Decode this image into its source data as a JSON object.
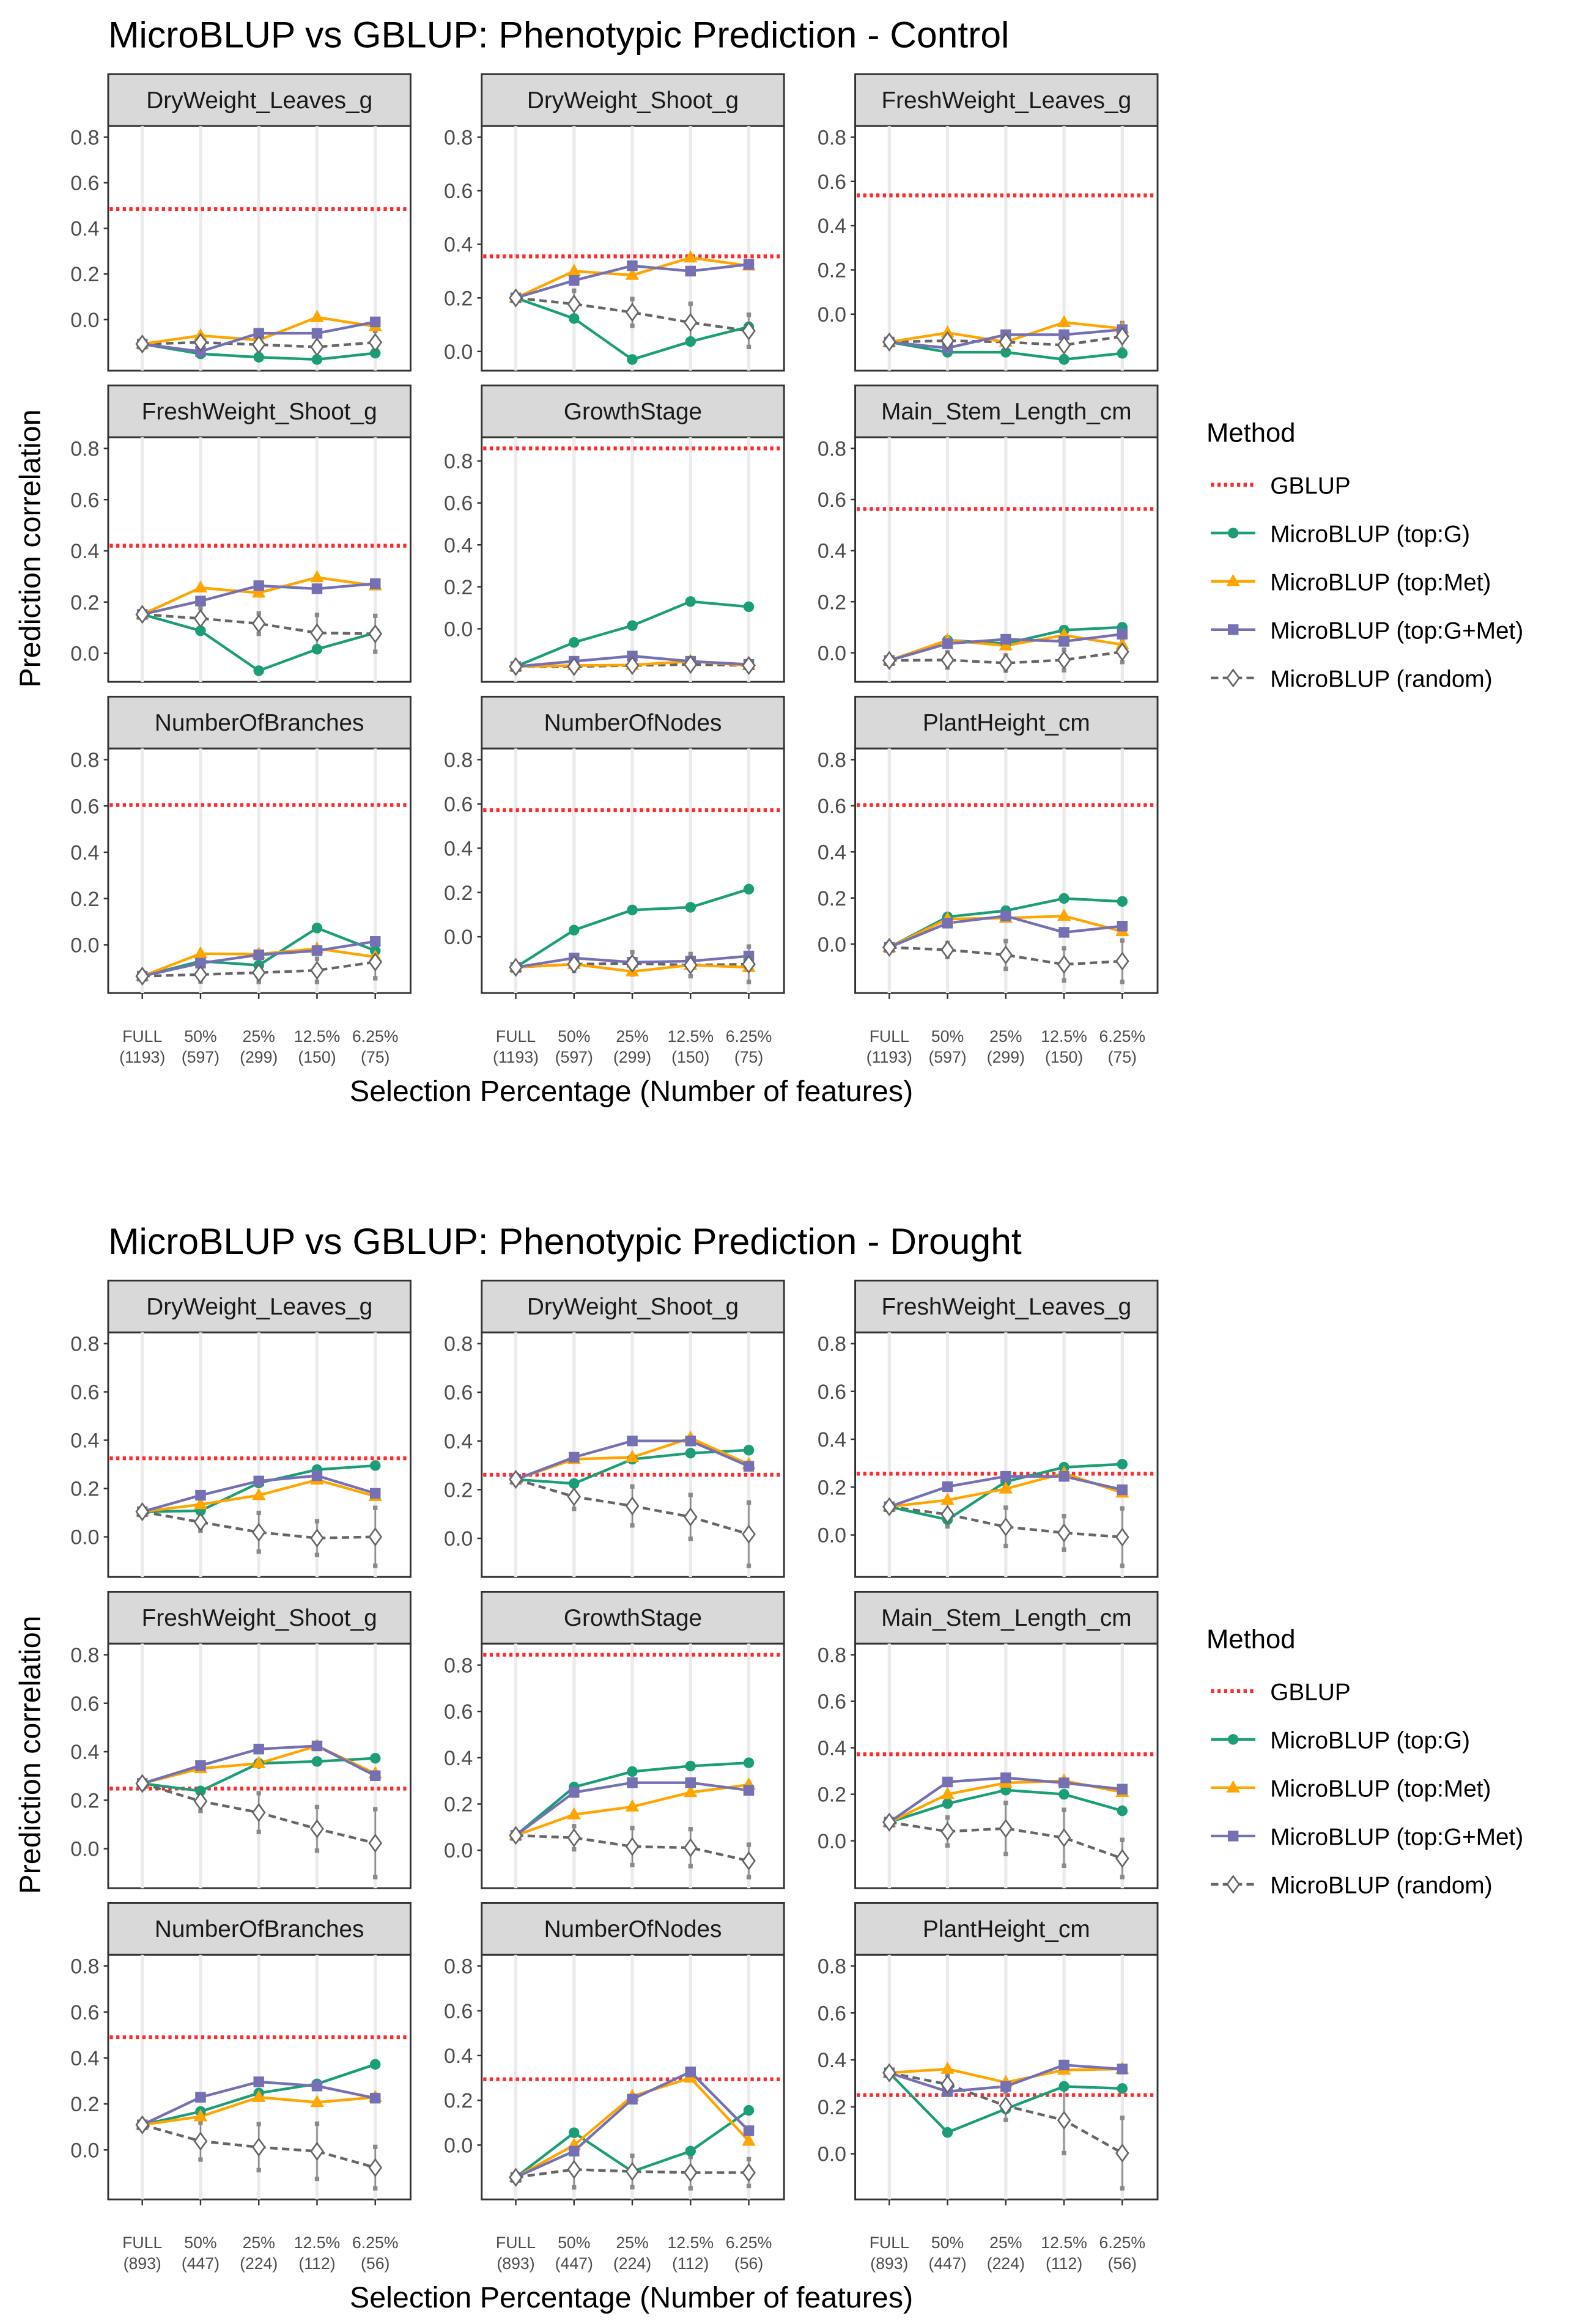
{
  "colors": {
    "GBLUP": "#FF2B2B",
    "MicroBLUP (top:G)": "#1B9E77",
    "MicroBLUP (top:Met)": "#FFA500",
    "MicroBLUP (top:G+Met)": "#7570B3",
    "MicroBLUP (random)": "#666666"
  },
  "legend": {
    "title": "Method",
    "items": [
      "GBLUP",
      "MicroBLUP (top:G)",
      "MicroBLUP (top:Met)",
      "MicroBLUP (top:G+Met)",
      "MicroBLUP (random)"
    ]
  },
  "chart_data": [
    {
      "type": "line",
      "title": "MicroBLUP vs GBLUP: Phenotypic Prediction - Control",
      "xlabel": "Selection Percentage (Number of features)",
      "ylabel": "Prediction correlation",
      "categories": [
        [
          "FULL",
          "(1193)"
        ],
        [
          "50%",
          "(597)"
        ],
        [
          "25%",
          "(299)"
        ],
        [
          "12.5%",
          "(150)"
        ],
        [
          "6.25%",
          "(75)"
        ]
      ],
      "yticks": [
        0.0,
        0.2,
        0.4,
        0.6,
        0.8
      ],
      "legend_position": "right",
      "facets": [
        {
          "name": "DryWeight_Leaves_g",
          "gblup": 0.485,
          "G": [
            -0.107,
            -0.15,
            -0.165,
            -0.175,
            -0.147
          ],
          "Met": [
            -0.107,
            -0.07,
            -0.09,
            0.01,
            -0.03
          ],
          "GMet": [
            -0.107,
            -0.14,
            -0.06,
            -0.06,
            -0.01
          ],
          "random": [
            -0.107,
            -0.1,
            -0.11,
            -0.12,
            -0.1
          ],
          "random_err": [
            0,
            0.03,
            0.04,
            0.05,
            0.05
          ]
        },
        {
          "name": "DryWeight_Shoot_g",
          "gblup": 0.355,
          "G": [
            0.2,
            0.123,
            -0.03,
            0.037,
            0.092
          ],
          "Met": [
            0.2,
            0.3,
            0.285,
            0.35,
            0.32
          ],
          "GMet": [
            0.2,
            0.265,
            0.32,
            0.3,
            0.325
          ],
          "random": [
            0.2,
            0.177,
            0.146,
            0.108,
            0.077
          ],
          "random_err": [
            0,
            0.05,
            0.05,
            0.07,
            0.06
          ]
        },
        {
          "name": "FreshWeight_Leaves_g",
          "gblup": 0.537,
          "G": [
            -0.126,
            -0.172,
            -0.172,
            -0.205,
            -0.177
          ],
          "Met": [
            -0.126,
            -0.084,
            -0.126,
            -0.037,
            -0.065
          ],
          "GMet": [
            -0.126,
            -0.153,
            -0.093,
            -0.093,
            -0.07
          ],
          "random": [
            -0.126,
            -0.12,
            -0.126,
            -0.14,
            -0.1
          ],
          "random_err": [
            0,
            0.04,
            0.04,
            0.05,
            0.06
          ]
        },
        {
          "name": "FreshWeight_Shoot_g",
          "gblup": 0.42,
          "G": [
            0.152,
            0.088,
            -0.068,
            0.016,
            0.08
          ],
          "Met": [
            0.152,
            0.256,
            0.236,
            0.296,
            0.264
          ],
          "GMet": [
            0.152,
            0.204,
            0.264,
            0.252,
            0.272
          ],
          "random": [
            0.152,
            0.136,
            0.116,
            0.08,
            0.076
          ],
          "random_err": [
            0,
            0.04,
            0.04,
            0.07,
            0.07
          ]
        },
        {
          "name": "GrowthStage",
          "gblup": 0.86,
          "G": [
            -0.18,
            -0.065,
            0.015,
            0.13,
            0.105
          ],
          "Met": [
            -0.18,
            -0.175,
            -0.173,
            -0.155,
            -0.175
          ],
          "GMet": [
            -0.18,
            -0.155,
            -0.13,
            -0.155,
            -0.17
          ],
          "random": [
            -0.18,
            -0.18,
            -0.175,
            -0.17,
            -0.175
          ],
          "random_err": [
            0,
            0.02,
            0.02,
            0.02,
            0.02
          ]
        },
        {
          "name": "Main_Stem_Length_cm",
          "gblup": 0.563,
          "G": [
            -0.03,
            0.049,
            0.036,
            0.089,
            0.1
          ],
          "Met": [
            -0.03,
            0.049,
            0.028,
            0.069,
            0.032
          ],
          "GMet": [
            -0.03,
            0.036,
            0.053,
            0.045,
            0.073
          ],
          "random": [
            -0.03,
            -0.028,
            -0.04,
            -0.028,
            0.004
          ],
          "random_err": [
            0,
            0.03,
            0.03,
            0.04,
            0.04
          ]
        },
        {
          "name": "NumberOfBranches",
          "gblup": 0.604,
          "G": [
            -0.135,
            -0.07,
            -0.088,
            0.073,
            -0.025
          ],
          "Met": [
            -0.135,
            -0.038,
            -0.04,
            -0.016,
            -0.052
          ],
          "GMet": [
            -0.135,
            -0.079,
            -0.043,
            -0.025,
            0.015
          ],
          "random": [
            -0.135,
            -0.128,
            -0.12,
            -0.11,
            -0.074
          ],
          "random_err": [
            0,
            0.03,
            0.04,
            0.05,
            0.07
          ]
        },
        {
          "name": "NumberOfNodes",
          "gblup": 0.572,
          "G": [
            -0.138,
            0.03,
            0.121,
            0.133,
            0.215
          ],
          "Met": [
            -0.138,
            -0.124,
            -0.157,
            -0.128,
            -0.138
          ],
          "GMet": [
            -0.138,
            -0.096,
            -0.115,
            -0.11,
            -0.087
          ],
          "random": [
            -0.138,
            -0.124,
            -0.12,
            -0.128,
            -0.124
          ],
          "random_err": [
            0,
            0.03,
            0.05,
            0.05,
            0.08
          ]
        },
        {
          "name": "PlantHeight_cm",
          "gblup": 0.603,
          "G": [
            -0.014,
            0.118,
            0.145,
            0.198,
            0.185
          ],
          "Met": [
            -0.014,
            0.109,
            0.113,
            0.122,
            0.055
          ],
          "GMet": [
            -0.014,
            0.091,
            0.122,
            0.051,
            0.078
          ],
          "random": [
            -0.014,
            -0.025,
            -0.047,
            -0.088,
            -0.074
          ],
          "random_err": [
            0,
            0.03,
            0.06,
            0.07,
            0.09
          ]
        }
      ]
    },
    {
      "type": "line",
      "title": "MicroBLUP vs GBLUP: Phenotypic Prediction - Drought",
      "xlabel": "Selection Percentage (Number of features)",
      "ylabel": "Prediction correlation",
      "categories": [
        [
          "FULL",
          "(893)"
        ],
        [
          "50%",
          "(447)"
        ],
        [
          "25%",
          "(224)"
        ],
        [
          "12.5%",
          "(112)"
        ],
        [
          "6.25%",
          "(56)"
        ]
      ],
      "yticks": [
        0.0,
        0.2,
        0.4,
        0.6,
        0.8
      ],
      "legend_position": "right",
      "facets": [
        {
          "name": "DryWeight_Leaves_g",
          "gblup": 0.325,
          "G": [
            0.104,
            0.108,
            0.223,
            0.278,
            0.295
          ],
          "Met": [
            0.104,
            0.134,
            0.172,
            0.236,
            0.168
          ],
          "GMet": [
            0.104,
            0.172,
            0.231,
            0.253,
            0.18
          ],
          "random": [
            0.104,
            0.061,
            0.019,
            -0.005,
            0.0
          ],
          "random_err": [
            0,
            0.035,
            0.08,
            0.07,
            0.12
          ]
        },
        {
          "name": "DryWeight_Shoot_g",
          "gblup": 0.261,
          "G": [
            0.242,
            0.225,
            0.325,
            0.35,
            0.362
          ],
          "Met": [
            0.242,
            0.325,
            0.333,
            0.412,
            0.304
          ],
          "GMet": [
            0.242,
            0.333,
            0.4,
            0.4,
            0.296
          ],
          "random": [
            0.242,
            0.171,
            0.133,
            0.088,
            0.017
          ],
          "random_err": [
            0,
            0.05,
            0.08,
            0.09,
            0.13
          ]
        },
        {
          "name": "FreshWeight_Leaves_g",
          "gblup": 0.256,
          "G": [
            0.118,
            0.064,
            0.223,
            0.283,
            0.296
          ],
          "Met": [
            0.118,
            0.146,
            0.193,
            0.258,
            0.176
          ],
          "GMet": [
            0.118,
            0.202,
            0.245,
            0.245,
            0.189
          ],
          "random": [
            0.118,
            0.086,
            0.034,
            0.009,
            -0.009
          ],
          "random_err": [
            0,
            0.05,
            0.08,
            0.07,
            0.12
          ]
        },
        {
          "name": "FreshWeight_Shoot_g",
          "gblup": 0.248,
          "G": [
            0.269,
            0.238,
            0.352,
            0.36,
            0.373
          ],
          "Met": [
            0.269,
            0.331,
            0.352,
            0.424,
            0.31
          ],
          "GMet": [
            0.269,
            0.343,
            0.411,
            0.424,
            0.301
          ],
          "random": [
            0.269,
            0.196,
            0.149,
            0.082,
            0.023
          ],
          "random_err": [
            0,
            0.04,
            0.08,
            0.09,
            0.14
          ]
        },
        {
          "name": "GrowthStage",
          "gblup": 0.845,
          "G": [
            0.064,
            0.273,
            0.34,
            0.364,
            0.378
          ],
          "Met": [
            0.064,
            0.154,
            0.188,
            0.25,
            0.283
          ],
          "GMet": [
            0.064,
            0.25,
            0.292,
            0.292,
            0.259
          ],
          "random": [
            0.064,
            0.054,
            0.016,
            0.011,
            -0.046
          ],
          "random_err": [
            0,
            0.05,
            0.08,
            0.08,
            0.07
          ]
        },
        {
          "name": "Main_Stem_Length_cm",
          "gblup": 0.372,
          "G": [
            0.08,
            0.16,
            0.218,
            0.2,
            0.129
          ],
          "Met": [
            0.08,
            0.2,
            0.249,
            0.258,
            0.209
          ],
          "GMet": [
            0.08,
            0.253,
            0.271,
            0.249,
            0.222
          ],
          "random": [
            0.08,
            0.04,
            0.053,
            0.013,
            -0.076
          ],
          "random_err": [
            0,
            0.06,
            0.11,
            0.12,
            0.08
          ]
        },
        {
          "name": "NumberOfBranches",
          "gblup": 0.49,
          "G": [
            0.109,
            0.167,
            0.247,
            0.287,
            0.372
          ],
          "Met": [
            0.109,
            0.145,
            0.229,
            0.207,
            0.229
          ],
          "GMet": [
            0.109,
            0.229,
            0.296,
            0.278,
            0.225
          ],
          "random": [
            0.109,
            0.038,
            0.012,
            -0.006,
            -0.077
          ],
          "random_err": [
            0,
            0.08,
            0.1,
            0.12,
            0.09
          ]
        },
        {
          "name": "NumberOfNodes",
          "gblup": 0.294,
          "G": [
            -0.144,
            0.055,
            -0.118,
            -0.027,
            0.155
          ],
          "Met": [
            -0.144,
            0.0,
            0.218,
            0.3,
            0.018
          ],
          "GMet": [
            -0.144,
            -0.027,
            0.205,
            0.327,
            0.064
          ],
          "random": [
            -0.144,
            -0.109,
            -0.118,
            -0.123,
            -0.123
          ],
          "random_err": [
            0,
            0.08,
            0.07,
            0.07,
            0.06
          ]
        },
        {
          "name": "PlantHeight_cm",
          "gblup": 0.25,
          "G": [
            0.345,
            0.091,
            0.191,
            0.287,
            0.278
          ],
          "Met": [
            0.345,
            0.361,
            0.304,
            0.357,
            0.361
          ],
          "GMet": [
            0.345,
            0.265,
            0.287,
            0.378,
            0.361
          ],
          "random": [
            0.345,
            0.296,
            0.204,
            0.143,
            0.003
          ],
          "random_err": [
            0,
            0.04,
            0.06,
            0.14,
            0.15
          ]
        }
      ]
    }
  ]
}
